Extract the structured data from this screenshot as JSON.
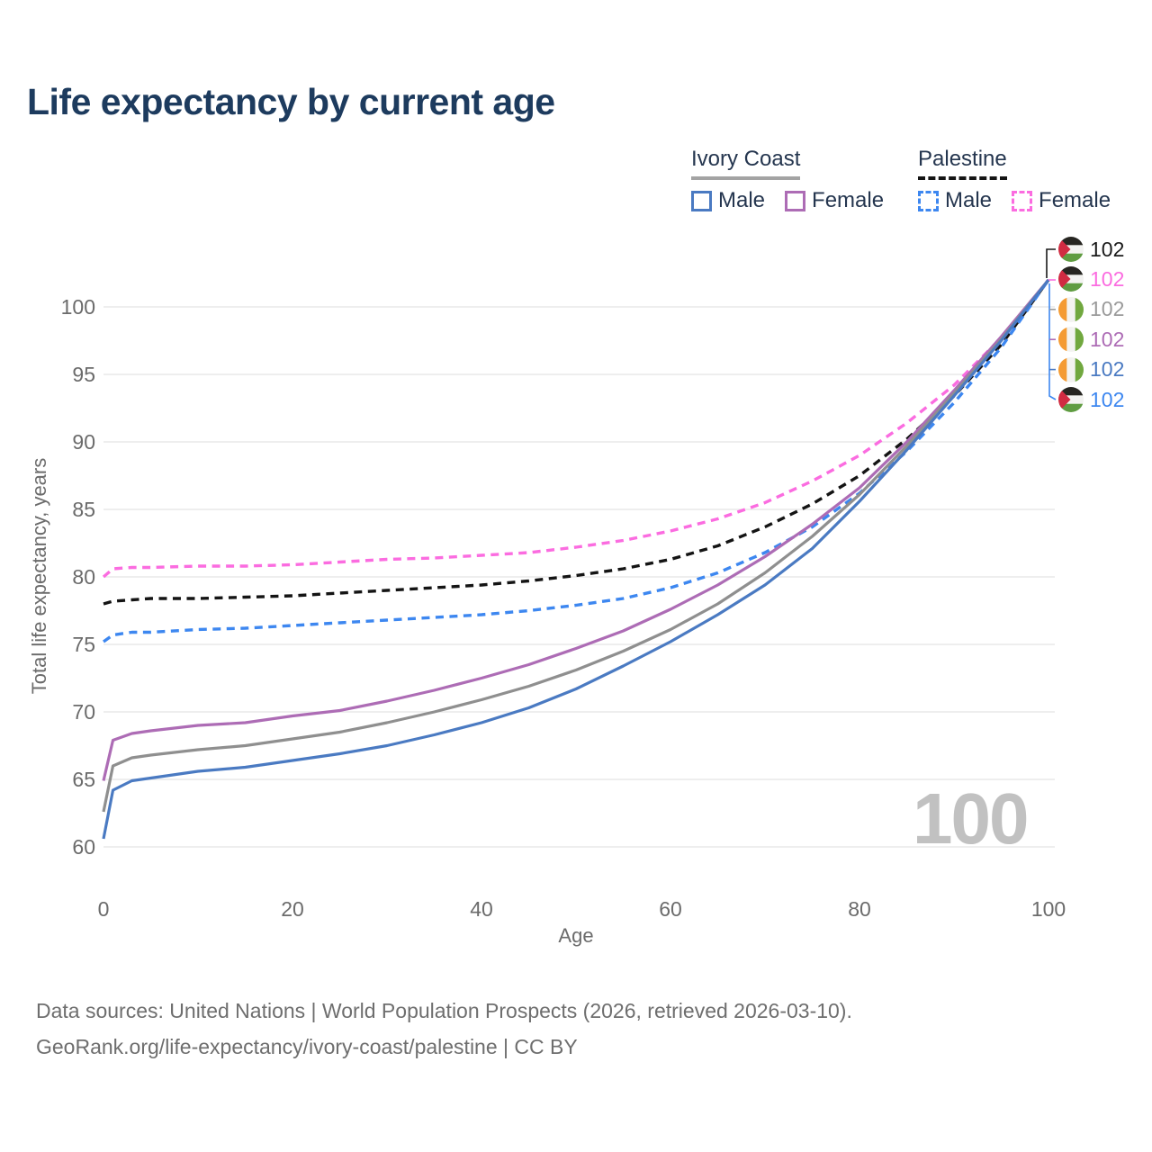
{
  "header": {
    "title": "Life expectancy by current age"
  },
  "legend": {
    "groups": [
      {
        "label": "Ivory Coast",
        "line_color": "#a3a3a3",
        "line_style": "solid",
        "items": [
          {
            "label": "Male",
            "color": "#4a7ac2",
            "dashed": false
          },
          {
            "label": "Female",
            "color": "#ad6cb5",
            "dashed": false
          }
        ]
      },
      {
        "label": "Palestine",
        "line_color": "#141414",
        "line_style": "dashed",
        "items": [
          {
            "label": "Male",
            "color": "#3d87f0",
            "dashed": true
          },
          {
            "label": "Female",
            "color": "#fb6ce0",
            "dashed": true
          }
        ]
      }
    ]
  },
  "chart_data": {
    "type": "line",
    "title": "Life expectancy by current age",
    "xlabel": "Age",
    "ylabel": "Total life expectancy, years",
    "xlim": [
      0,
      100
    ],
    "ylim": [
      60,
      102.5
    ],
    "x_ticks": [
      0,
      20,
      40,
      60,
      80,
      100
    ],
    "y_ticks": [
      60,
      65,
      70,
      75,
      80,
      85,
      90,
      95,
      100
    ],
    "grid": "horizontal-only",
    "legend_position": "top-right",
    "watermark": "100",
    "series": [
      {
        "id": "palestine-female",
        "name": "Palestine Female",
        "color": "#fb6ce0",
        "dashed": true,
        "points": [
          [
            0,
            80.0
          ],
          [
            1,
            80.6
          ],
          [
            3,
            80.7
          ],
          [
            5,
            80.7
          ],
          [
            10,
            80.8
          ],
          [
            15,
            80.8
          ],
          [
            20,
            80.9
          ],
          [
            25,
            81.1
          ],
          [
            30,
            81.3
          ],
          [
            35,
            81.4
          ],
          [
            40,
            81.6
          ],
          [
            45,
            81.8
          ],
          [
            50,
            82.2
          ],
          [
            55,
            82.7
          ],
          [
            60,
            83.4
          ],
          [
            65,
            84.3
          ],
          [
            70,
            85.5
          ],
          [
            75,
            87.1
          ],
          [
            80,
            89.0
          ],
          [
            85,
            91.4
          ],
          [
            90,
            94.2
          ],
          [
            95,
            97.7
          ],
          [
            100,
            102
          ]
        ]
      },
      {
        "id": "palestine-total",
        "name": "Palestine",
        "color": "#141414",
        "dashed": true,
        "points": [
          [
            0,
            78.0
          ],
          [
            1,
            78.2
          ],
          [
            3,
            78.3
          ],
          [
            5,
            78.4
          ],
          [
            10,
            78.4
          ],
          [
            15,
            78.5
          ],
          [
            20,
            78.6
          ],
          [
            25,
            78.8
          ],
          [
            30,
            79.0
          ],
          [
            35,
            79.2
          ],
          [
            40,
            79.4
          ],
          [
            45,
            79.7
          ],
          [
            50,
            80.1
          ],
          [
            55,
            80.6
          ],
          [
            60,
            81.3
          ],
          [
            65,
            82.3
          ],
          [
            70,
            83.7
          ],
          [
            75,
            85.4
          ],
          [
            80,
            87.5
          ],
          [
            85,
            90.2
          ],
          [
            90,
            93.4
          ],
          [
            95,
            97.2
          ],
          [
            100,
            102
          ]
        ]
      },
      {
        "id": "palestine-male",
        "name": "Palestine Male",
        "color": "#3d87f0",
        "dashed": true,
        "points": [
          [
            0,
            75.2
          ],
          [
            1,
            75.7
          ],
          [
            3,
            75.9
          ],
          [
            5,
            75.9
          ],
          [
            10,
            76.1
          ],
          [
            15,
            76.2
          ],
          [
            20,
            76.4
          ],
          [
            25,
            76.6
          ],
          [
            30,
            76.8
          ],
          [
            35,
            77.0
          ],
          [
            40,
            77.2
          ],
          [
            45,
            77.5
          ],
          [
            50,
            77.9
          ],
          [
            55,
            78.4
          ],
          [
            60,
            79.2
          ],
          [
            65,
            80.3
          ],
          [
            70,
            81.8
          ],
          [
            75,
            83.7
          ],
          [
            80,
            86.2
          ],
          [
            85,
            89.3
          ],
          [
            90,
            92.9
          ],
          [
            95,
            97.0
          ],
          [
            100,
            102
          ]
        ]
      },
      {
        "id": "ivory-coast-female",
        "name": "Ivory Coast Female",
        "color": "#ad6cb5",
        "dashed": false,
        "points": [
          [
            0,
            64.9
          ],
          [
            1,
            67.9
          ],
          [
            3,
            68.4
          ],
          [
            5,
            68.6
          ],
          [
            10,
            69.0
          ],
          [
            15,
            69.2
          ],
          [
            20,
            69.7
          ],
          [
            25,
            70.1
          ],
          [
            30,
            70.8
          ],
          [
            35,
            71.6
          ],
          [
            40,
            72.5
          ],
          [
            45,
            73.5
          ],
          [
            50,
            74.7
          ],
          [
            55,
            76.0
          ],
          [
            60,
            77.6
          ],
          [
            65,
            79.4
          ],
          [
            70,
            81.5
          ],
          [
            75,
            83.9
          ],
          [
            80,
            86.6
          ],
          [
            85,
            90.0
          ],
          [
            90,
            93.8
          ],
          [
            95,
            97.8
          ],
          [
            100,
            102
          ]
        ]
      },
      {
        "id": "ivory-coast-total",
        "name": "Ivory Coast",
        "color": "#8f8f8f",
        "dashed": false,
        "points": [
          [
            0,
            62.6
          ],
          [
            1,
            66.0
          ],
          [
            3,
            66.6
          ],
          [
            5,
            66.8
          ],
          [
            10,
            67.2
          ],
          [
            15,
            67.5
          ],
          [
            20,
            68.0
          ],
          [
            25,
            68.5
          ],
          [
            30,
            69.2
          ],
          [
            35,
            70.0
          ],
          [
            40,
            70.9
          ],
          [
            45,
            71.9
          ],
          [
            50,
            73.1
          ],
          [
            55,
            74.5
          ],
          [
            60,
            76.1
          ],
          [
            65,
            78.0
          ],
          [
            70,
            80.3
          ],
          [
            75,
            83.0
          ],
          [
            80,
            86.1
          ],
          [
            85,
            89.7
          ],
          [
            90,
            93.6
          ],
          [
            95,
            97.6
          ],
          [
            100,
            102
          ]
        ]
      },
      {
        "id": "ivory-coast-male",
        "name": "Ivory Coast Male",
        "color": "#4a7ac2",
        "dashed": false,
        "points": [
          [
            0,
            60.6
          ],
          [
            1,
            64.2
          ],
          [
            3,
            64.9
          ],
          [
            5,
            65.1
          ],
          [
            10,
            65.6
          ],
          [
            15,
            65.9
          ],
          [
            20,
            66.4
          ],
          [
            25,
            66.9
          ],
          [
            30,
            67.5
          ],
          [
            35,
            68.3
          ],
          [
            40,
            69.2
          ],
          [
            45,
            70.3
          ],
          [
            50,
            71.7
          ],
          [
            55,
            73.4
          ],
          [
            60,
            75.2
          ],
          [
            65,
            77.2
          ],
          [
            70,
            79.4
          ],
          [
            75,
            82.1
          ],
          [
            80,
            85.6
          ],
          [
            85,
            89.4
          ],
          [
            90,
            93.4
          ],
          [
            95,
            97.5
          ],
          [
            100,
            102
          ]
        ]
      }
    ],
    "end_labels": [
      {
        "flag": "palestine",
        "series": "Palestine",
        "value": "102",
        "color": "#1a1a1a"
      },
      {
        "flag": "palestine",
        "series": "Palestine Female",
        "value": "102",
        "color": "#fb6ce0"
      },
      {
        "flag": "ivory-coast",
        "series": "Ivory Coast",
        "value": "102",
        "color": "#9a9a9a"
      },
      {
        "flag": "ivory-coast",
        "series": "Ivory Coast Female",
        "value": "102",
        "color": "#ad6cb5"
      },
      {
        "flag": "ivory-coast",
        "series": "Ivory Coast Male",
        "value": "102",
        "color": "#4a7ac2"
      },
      {
        "flag": "palestine",
        "series": "Palestine Male",
        "value": "102",
        "color": "#3d87f0"
      }
    ],
    "flag_colors": {
      "palestine": {
        "top": "#262521",
        "middle": "#f3f3f1",
        "bottom": "#5f9c41",
        "triangle": "#d12b42"
      },
      "ivory_coast": {
        "left": "#f49b33",
        "middle": "#f3f3f1",
        "right": "#71a83f"
      }
    }
  },
  "footer": {
    "line1": "Data sources: United Nations | World Population Prospects (2026, retrieved 2026-03-10).",
    "line2": "GeoRank.org/life-expectancy/ivory-coast/palestine | CC BY"
  }
}
